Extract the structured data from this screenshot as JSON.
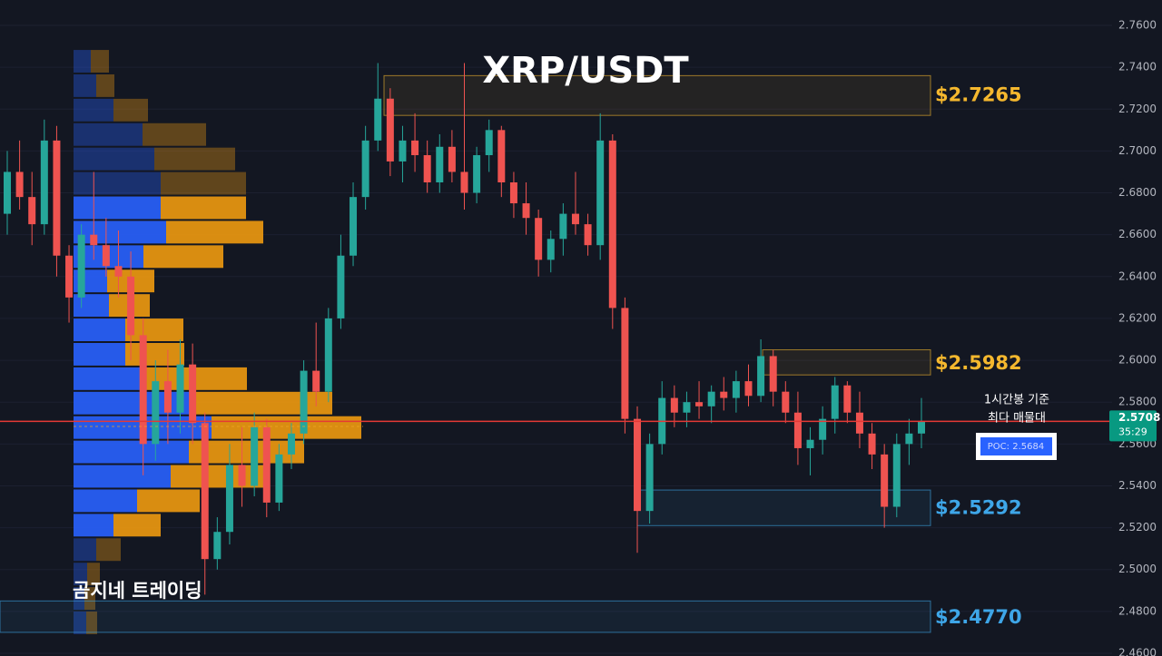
{
  "chart_data": {
    "type": "candlestick",
    "title": "XRP/USDT",
    "watermark": "곰지네 트레이딩",
    "annotation": [
      "1시간봉 기준",
      "최다 매물대"
    ],
    "ylim": [
      2.46,
      2.76
    ],
    "yticks": [
      {
        "value": 2.46,
        "label": "2.4600"
      },
      {
        "value": 2.48,
        "label": "2.4800"
      },
      {
        "value": 2.5,
        "label": "2.5000"
      },
      {
        "value": 2.52,
        "label": "2.5200"
      },
      {
        "value": 2.54,
        "label": "2.5400"
      },
      {
        "value": 2.56,
        "label": "2.5600"
      },
      {
        "value": 2.58,
        "label": "2.5800"
      },
      {
        "value": 2.6,
        "label": "2.6000"
      },
      {
        "value": 2.62,
        "label": "2.6200"
      },
      {
        "value": 2.64,
        "label": "2.6400"
      },
      {
        "value": 2.66,
        "label": "2.6600"
      },
      {
        "value": 2.68,
        "label": "2.6800"
      },
      {
        "value": 2.7,
        "label": "2.7000"
      },
      {
        "value": 2.72,
        "label": "2.7200"
      },
      {
        "value": 2.74,
        "label": "2.7400"
      },
      {
        "value": 2.76,
        "label": "2.7600"
      }
    ],
    "grid": true,
    "up_color": "#26a69a",
    "down_color": "#ef5350",
    "candles": [
      [
        2.67,
        2.7,
        2.66,
        2.69
      ],
      [
        2.69,
        2.705,
        2.672,
        2.678
      ],
      [
        2.678,
        2.69,
        2.655,
        2.665
      ],
      [
        2.665,
        2.715,
        2.66,
        2.705
      ],
      [
        2.705,
        2.712,
        2.64,
        2.65
      ],
      [
        2.65,
        2.655,
        2.618,
        2.63
      ],
      [
        2.63,
        2.665,
        2.625,
        2.66
      ],
      [
        2.66,
        2.69,
        2.648,
        2.655
      ],
      [
        2.655,
        2.668,
        2.64,
        2.645
      ],
      [
        2.645,
        2.662,
        2.63,
        2.64
      ],
      [
        2.64,
        2.652,
        2.6,
        2.612
      ],
      [
        2.612,
        2.62,
        2.545,
        2.56
      ],
      [
        2.56,
        2.6,
        2.552,
        2.59
      ],
      [
        2.59,
        2.605,
        2.56,
        2.575
      ],
      [
        2.575,
        2.61,
        2.565,
        2.598
      ],
      [
        2.598,
        2.608,
        2.56,
        2.57
      ],
      [
        2.57,
        2.575,
        2.488,
        2.505
      ],
      [
        2.505,
        2.525,
        2.5,
        2.518
      ],
      [
        2.518,
        2.56,
        2.512,
        2.55
      ],
      [
        2.55,
        2.568,
        2.53,
        2.54
      ],
      [
        2.54,
        2.575,
        2.535,
        2.568
      ],
      [
        2.568,
        2.572,
        2.525,
        2.532
      ],
      [
        2.532,
        2.56,
        2.528,
        2.555
      ],
      [
        2.555,
        2.57,
        2.548,
        2.565
      ],
      [
        2.565,
        2.6,
        2.56,
        2.595
      ],
      [
        2.595,
        2.618,
        2.578,
        2.585
      ],
      [
        2.585,
        2.625,
        2.58,
        2.62
      ],
      [
        2.62,
        2.66,
        2.615,
        2.65
      ],
      [
        2.65,
        2.685,
        2.645,
        2.678
      ],
      [
        2.678,
        2.712,
        2.672,
        2.705
      ],
      [
        2.705,
        2.742,
        2.7,
        2.725
      ],
      [
        2.725,
        2.73,
        2.688,
        2.695
      ],
      [
        2.695,
        2.712,
        2.685,
        2.705
      ],
      [
        2.705,
        2.718,
        2.69,
        2.698
      ],
      [
        2.698,
        2.705,
        2.68,
        2.685
      ],
      [
        2.685,
        2.708,
        2.68,
        2.702
      ],
      [
        2.702,
        2.71,
        2.685,
        2.69
      ],
      [
        2.69,
        2.742,
        2.672,
        2.68
      ],
      [
        2.68,
        2.702,
        2.675,
        2.698
      ],
      [
        2.698,
        2.715,
        2.69,
        2.71
      ],
      [
        2.71,
        2.712,
        2.678,
        2.685
      ],
      [
        2.685,
        2.69,
        2.668,
        2.675
      ],
      [
        2.675,
        2.685,
        2.66,
        2.668
      ],
      [
        2.668,
        2.672,
        2.64,
        2.648
      ],
      [
        2.648,
        2.662,
        2.642,
        2.658
      ],
      [
        2.658,
        2.675,
        2.65,
        2.67
      ],
      [
        2.67,
        2.69,
        2.66,
        2.665
      ],
      [
        2.665,
        2.67,
        2.65,
        2.655
      ],
      [
        2.655,
        2.718,
        2.648,
        2.705
      ],
      [
        2.705,
        2.708,
        2.615,
        2.625
      ],
      [
        2.625,
        2.63,
        2.565,
        2.572
      ],
      [
        2.572,
        2.578,
        2.508,
        2.528
      ],
      [
        2.528,
        2.565,
        2.522,
        2.56
      ],
      [
        2.56,
        2.59,
        2.555,
        2.582
      ],
      [
        2.582,
        2.588,
        2.568,
        2.575
      ],
      [
        2.575,
        2.585,
        2.568,
        2.58
      ],
      [
        2.58,
        2.59,
        2.572,
        2.578
      ],
      [
        2.578,
        2.588,
        2.57,
        2.585
      ],
      [
        2.585,
        2.592,
        2.576,
        2.582
      ],
      [
        2.582,
        2.595,
        2.575,
        2.59
      ],
      [
        2.59,
        2.598,
        2.578,
        2.583
      ],
      [
        2.583,
        2.61,
        2.58,
        2.602
      ],
      [
        2.602,
        2.605,
        2.578,
        2.585
      ],
      [
        2.585,
        2.59,
        2.57,
        2.575
      ],
      [
        2.575,
        2.585,
        2.55,
        2.558
      ],
      [
        2.558,
        2.568,
        2.545,
        2.562
      ],
      [
        2.562,
        2.578,
        2.555,
        2.572
      ],
      [
        2.572,
        2.592,
        2.565,
        2.588
      ],
      [
        2.588,
        2.59,
        2.57,
        2.575
      ],
      [
        2.575,
        2.585,
        2.558,
        2.565
      ],
      [
        2.565,
        2.57,
        2.548,
        2.555
      ],
      [
        2.555,
        2.56,
        2.52,
        2.53
      ],
      [
        2.53,
        2.565,
        2.525,
        2.56
      ],
      [
        2.56,
        2.572,
        2.55,
        2.565
      ],
      [
        2.565,
        2.582,
        2.558,
        2.5708
      ]
    ],
    "last_price": {
      "value": 2.5708,
      "label": "2.5708"
    },
    "countdown": "35:29",
    "poc": {
      "value": 2.5684,
      "label": "POC: 2.5684"
    },
    "zones": [
      {
        "label": "$2.7265",
        "value": 2.7265,
        "top": 2.736,
        "bottom": 2.717,
        "color": "#f5b82e"
      },
      {
        "label": "$2.5982",
        "value": 2.5982,
        "top": 2.605,
        "bottom": 2.593,
        "color": "#f5b82e"
      },
      {
        "label": "$2.5292",
        "value": 2.5292,
        "top": 2.538,
        "bottom": 2.521,
        "color": "#3ea6e8"
      },
      {
        "label": "$2.4770",
        "value": 2.477,
        "top": 2.485,
        "bottom": 2.47,
        "color": "#3ea6e8"
      }
    ],
    "volume_profile": {
      "price_range": [
        2.4687,
        2.7487
      ],
      "buy_color": "#2962ff",
      "sell_color": "#f09a10",
      "value_area_rows": [
        6,
        19
      ],
      "buy": [
        19,
        25,
        44,
        76,
        89,
        96,
        96,
        102,
        77,
        37,
        39,
        57,
        57,
        74,
        133,
        152,
        127,
        107,
        70,
        44,
        25,
        15,
        12,
        14
      ],
      "sell": [
        20,
        20,
        38,
        70,
        89,
        94,
        94,
        107,
        88,
        52,
        45,
        64,
        65,
        117,
        152,
        165,
        127,
        102,
        69,
        52,
        27,
        14,
        12,
        12
      ]
    }
  }
}
